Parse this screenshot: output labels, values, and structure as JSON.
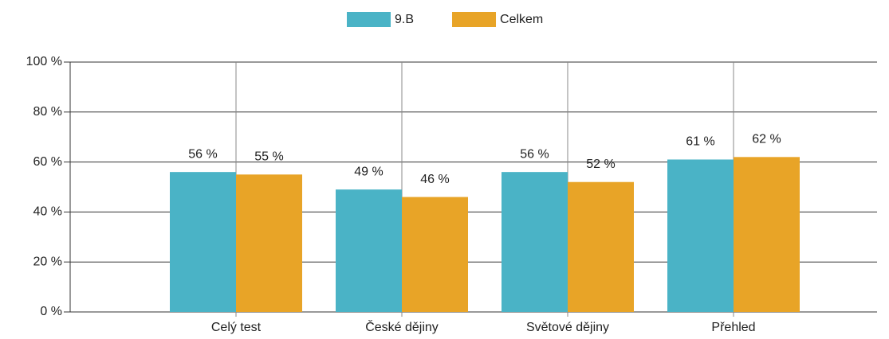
{
  "chart_data": {
    "type": "bar",
    "categories": [
      "Celý test",
      "České dějiny",
      "Světové dějiny",
      "Přehled"
    ],
    "series": [
      {
        "name": "9.B",
        "color": "#4ab3c6",
        "values": [
          56,
          49,
          56,
          61
        ],
        "value_labels": [
          "56 %",
          "49 %",
          "56 %",
          "61 %"
        ]
      },
      {
        "name": "Celkem",
        "color": "#e8a427",
        "values": [
          55,
          46,
          52,
          62
        ],
        "value_labels": [
          "55 %",
          "46 %",
          "52 %",
          "62 %"
        ]
      }
    ],
    "ylim": [
      0,
      100
    ],
    "yticks": [
      {
        "value": 0,
        "label": "0 %"
      },
      {
        "value": 20,
        "label": "20 %"
      },
      {
        "value": 40,
        "label": "40 %"
      },
      {
        "value": 60,
        "label": "60 %"
      },
      {
        "value": 80,
        "label": "80 %"
      },
      {
        "value": 100,
        "label": "100 %"
      }
    ],
    "grid": true
  }
}
